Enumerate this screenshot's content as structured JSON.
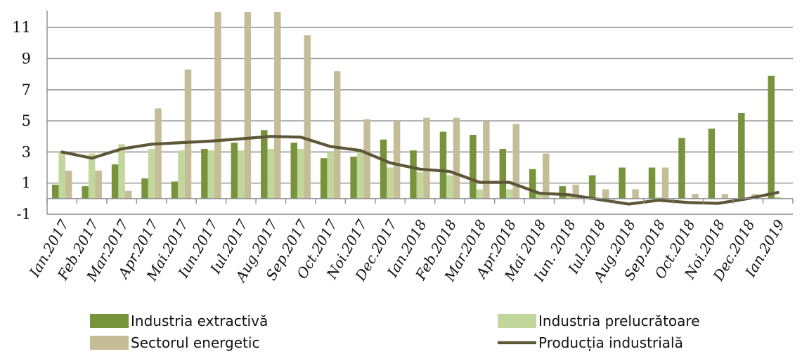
{
  "chart_data": {
    "type": "bar",
    "title": "",
    "xlabel": "",
    "ylabel": "",
    "ylim": [
      -1,
      12
    ],
    "yticks": [
      -1,
      1,
      3,
      5,
      7,
      9,
      11
    ],
    "grid": true,
    "legend_position": "bottom",
    "categories": [
      "Ian.2017",
      "Feb.2017",
      "Mar.2017",
      "Apr.2017",
      "Mai.2017",
      "Iun.2017",
      "Iul.2017",
      "Aug.2017",
      "Sep.2017",
      "Oct.2017",
      "Noi.2017",
      "Dec.2017",
      "Ian.2018",
      "Feb.2018",
      "Mar.2018",
      "Apr.2018",
      "Mai 2018",
      "Iun. 2018",
      "Iul.2018",
      "Aug.2018",
      "Sep.2018",
      "Oct.2018",
      "Noi.2018",
      "Dec.2018",
      "Ian.2019"
    ],
    "series": [
      {
        "name": "Industria extractivă",
        "type": "bar",
        "color": "#77933c",
        "values": [
          0.9,
          0.8,
          2.2,
          1.3,
          1.1,
          3.2,
          3.6,
          4.4,
          3.6,
          2.6,
          2.7,
          3.8,
          3.1,
          4.3,
          4.1,
          3.2,
          1.9,
          0.8,
          1.5,
          2.0,
          2.0,
          3.9,
          4.5,
          5.5,
          7.9
        ]
      },
      {
        "name": "Industria prelucrătoare",
        "type": "bar",
        "color": "#c3d69b",
        "values": [
          3.0,
          2.9,
          3.5,
          3.2,
          3.1,
          3.1,
          3.1,
          3.2,
          3.2,
          3.0,
          3.0,
          2.0,
          1.7,
          1.5,
          0.6,
          0.6,
          0.3,
          0.2,
          0.0,
          0.0,
          0.1,
          0.0,
          0.0,
          0.0,
          0.1
        ]
      },
      {
        "name": "Sectorul energetic",
        "type": "bar",
        "color": "#c4bd97",
        "values": [
          1.8,
          1.8,
          0.5,
          5.8,
          8.3,
          12.0,
          12.0,
          12.0,
          10.5,
          8.2,
          5.1,
          5.0,
          5.2,
          5.2,
          5.0,
          4.8,
          2.9,
          0.9,
          0.6,
          0.6,
          2.0,
          0.3,
          0.3,
          0.3,
          0.0
        ]
      },
      {
        "name": "Producția industrială",
        "type": "line",
        "color": "#5e5737",
        "values": [
          3.0,
          2.6,
          3.2,
          3.5,
          3.6,
          3.7,
          3.85,
          4.0,
          3.95,
          3.35,
          3.1,
          2.3,
          1.9,
          1.75,
          1.05,
          1.05,
          0.35,
          0.25,
          -0.05,
          -0.35,
          -0.1,
          -0.25,
          -0.3,
          0.0,
          0.4
        ]
      }
    ]
  }
}
